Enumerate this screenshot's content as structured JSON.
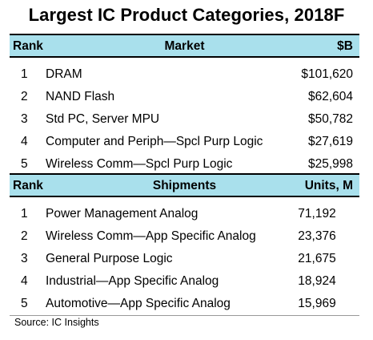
{
  "chart_data": {
    "type": "table",
    "title": "Largest IC Product Categories, 2018F",
    "source": "Source:  IC Insights",
    "tables": [
      {
        "columns": [
          "Rank",
          "Market",
          "$B"
        ],
        "rows": [
          {
            "rank": "1",
            "name": "DRAM",
            "value": "$101,620"
          },
          {
            "rank": "2",
            "name": "NAND Flash",
            "value": "$62,604"
          },
          {
            "rank": "3",
            "name": "Std PC, Server MPU",
            "value": "$50,782"
          },
          {
            "rank": "4",
            "name": "Computer and Periph—Spcl Purp Logic",
            "value": "$27,619"
          },
          {
            "rank": "5",
            "name": "Wireless Comm—Spcl Purp Logic",
            "value": "$25,998"
          }
        ]
      },
      {
        "columns": [
          "Rank",
          "Shipments",
          "Units, M"
        ],
        "rows": [
          {
            "rank": "1",
            "name": "Power Management Analog",
            "value": "71,192"
          },
          {
            "rank": "2",
            "name": "Wireless Comm—App Specific Analog",
            "value": "23,376"
          },
          {
            "rank": "3",
            "name": "General Purpose Logic",
            "value": "21,675"
          },
          {
            "rank": "4",
            "name": "Industrial—App Specific Analog",
            "value": "18,924"
          },
          {
            "rank": "5",
            "name": "Automotive—App Specific Analog",
            "value": "15,969"
          }
        ]
      }
    ],
    "colors": {
      "header_bg": "#a9e0ec",
      "header_border": "#000000"
    }
  }
}
